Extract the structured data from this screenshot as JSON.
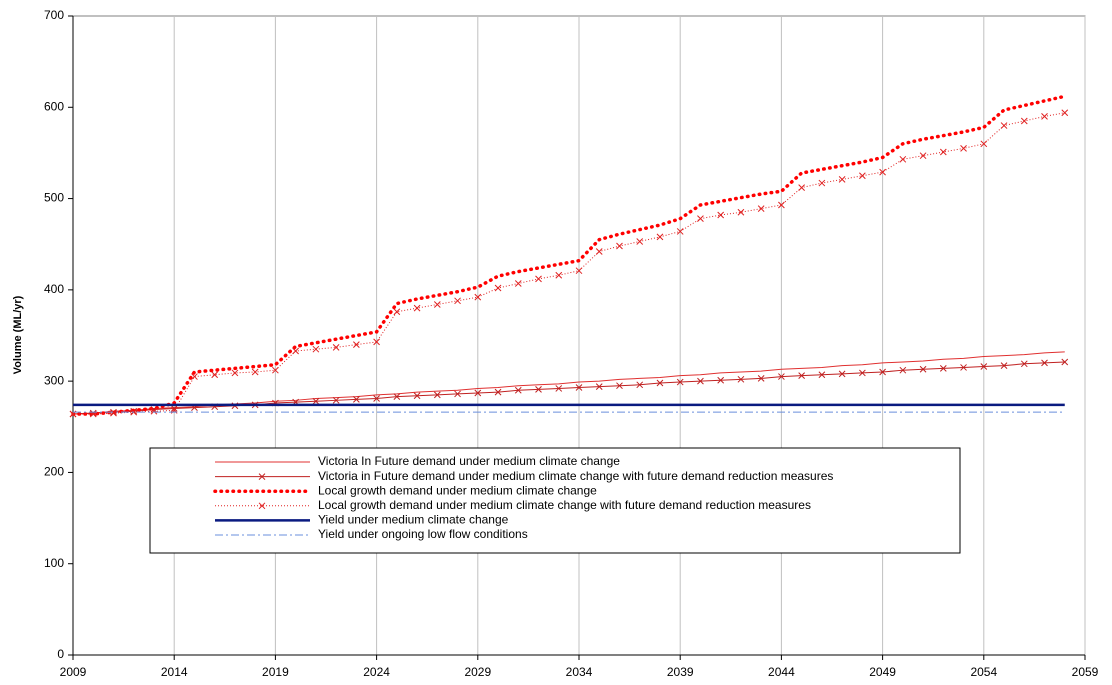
{
  "chart_data": {
    "type": "line",
    "y_label": "Volume (ML/yr)",
    "x": [
      2009,
      2010,
      2011,
      2012,
      2013,
      2014,
      2015,
      2016,
      2017,
      2018,
      2019,
      2020,
      2021,
      2022,
      2023,
      2024,
      2025,
      2026,
      2027,
      2028,
      2029,
      2030,
      2031,
      2032,
      2033,
      2034,
      2035,
      2036,
      2037,
      2038,
      2039,
      2040,
      2041,
      2042,
      2043,
      2044,
      2045,
      2046,
      2047,
      2048,
      2049,
      2050,
      2051,
      2052,
      2053,
      2054,
      2055,
      2056,
      2057,
      2058
    ],
    "xlim": [
      2009,
      2059
    ],
    "xticks": [
      2009,
      2014,
      2019,
      2024,
      2029,
      2034,
      2039,
      2044,
      2049,
      2054,
      2059
    ],
    "ylim": [
      0,
      700
    ],
    "yticks": [
      0,
      100,
      200,
      300,
      400,
      500,
      600,
      700
    ],
    "grid": "x",
    "series": [
      {
        "name": "Victoria In Future demand under medium climate change",
        "color": "#e03030",
        "width": 1,
        "line_style": "solid",
        "values": [
          264,
          265,
          267,
          268,
          270,
          271,
          272,
          274,
          275,
          276,
          278,
          279,
          281,
          282,
          283,
          285,
          286,
          288,
          289,
          290,
          292,
          293,
          295,
          296,
          297,
          299,
          300,
          302,
          303,
          304,
          306,
          307,
          309,
          310,
          311,
          313,
          314,
          315,
          317,
          318,
          320,
          321,
          322,
          324,
          325,
          327,
          328,
          329,
          331,
          332
        ]
      },
      {
        "name": "Victoria in Future demand under medium climate change with future demand reduction measures",
        "color": "#c02020",
        "width": 1,
        "line_style": "solid",
        "marker": "x",
        "values": [
          264,
          265,
          266,
          267,
          269,
          270,
          271,
          272,
          273,
          274,
          276,
          277,
          278,
          279,
          280,
          281,
          283,
          284,
          285,
          286,
          287,
          288,
          290,
          291,
          292,
          293,
          294,
          295,
          296,
          298,
          299,
          300,
          301,
          302,
          303,
          305,
          306,
          307,
          308,
          309,
          310,
          312,
          313,
          314,
          315,
          316,
          317,
          319,
          320,
          321
        ]
      },
      {
        "name": "Local growth demand under medium climate change",
        "color": "#ff0000",
        "width": 3.5,
        "line_style": "dotted",
        "values": [
          264,
          264,
          266,
          268,
          270,
          276,
          310,
          312,
          314,
          316,
          318,
          338,
          342,
          346,
          350,
          354,
          385,
          390,
          394,
          398,
          403,
          415,
          420,
          424,
          428,
          432,
          455,
          461,
          466,
          471,
          478,
          493,
          497,
          501,
          505,
          508,
          528,
          532,
          536,
          540,
          545,
          560,
          565,
          569,
          573,
          578,
          597,
          602,
          607,
          612
        ]
      },
      {
        "name": "Local growth demand under medium climate change with future demand reduction measures",
        "color": "#e02020",
        "width": 1,
        "line_style": "fine-dotted",
        "marker": "x",
        "values": [
          264,
          264,
          265,
          266,
          267,
          268,
          305,
          307,
          309,
          310,
          312,
          333,
          335,
          337,
          340,
          343,
          376,
          380,
          384,
          388,
          392,
          402,
          407,
          412,
          416,
          421,
          442,
          448,
          453,
          458,
          464,
          478,
          482,
          485,
          489,
          493,
          512,
          517,
          521,
          525,
          529,
          543,
          547,
          551,
          555,
          560,
          580,
          585,
          590,
          594
        ]
      },
      {
        "name": "Yield under medium climate change",
        "color": "#0a1a80",
        "width": 2.5,
        "line_style": "solid",
        "values": [
          274,
          274,
          274,
          274,
          274,
          274,
          274,
          274,
          274,
          274,
          274,
          274,
          274,
          274,
          274,
          274,
          274,
          274,
          274,
          274,
          274,
          274,
          274,
          274,
          274,
          274,
          274,
          274,
          274,
          274,
          274,
          274,
          274,
          274,
          274,
          274,
          274,
          274,
          274,
          274,
          274,
          274,
          274,
          274,
          274,
          274,
          274,
          274,
          274,
          274
        ]
      },
      {
        "name": "Yield under ongoing low flow conditions",
        "color": "#6a8fdc",
        "width": 1,
        "line_style": "dashdot",
        "values": [
          266,
          266,
          266,
          266,
          266,
          266,
          266,
          266,
          266,
          266,
          266,
          266,
          266,
          266,
          266,
          266,
          266,
          266,
          266,
          266,
          266,
          266,
          266,
          266,
          266,
          266,
          266,
          266,
          266,
          266,
          266,
          266,
          266,
          266,
          266,
          266,
          266,
          266,
          266,
          266,
          266,
          266,
          266,
          266,
          266,
          266,
          266,
          266,
          266,
          266
        ]
      }
    ]
  }
}
